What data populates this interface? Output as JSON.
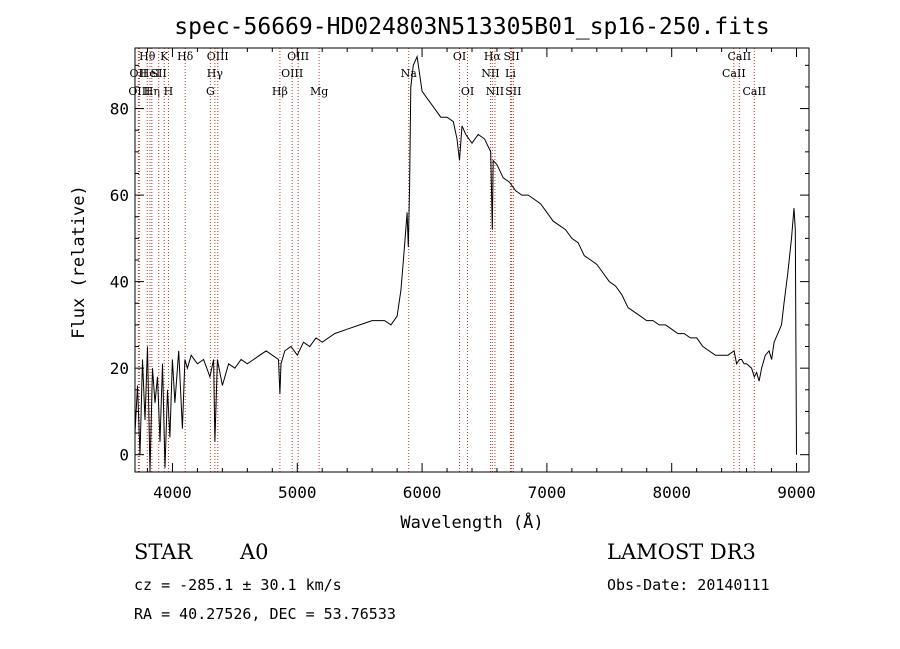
{
  "chart_data": {
    "type": "line",
    "title": "spec-56669-HD024803N513305B01_sp16-250.fits",
    "xlabel": "Wavelength (Å)",
    "ylabel": "Flux (relative)",
    "xlim": [
      3700,
      9100
    ],
    "ylim": [
      -4,
      94
    ],
    "xticks": [
      4000,
      5000,
      6000,
      7000,
      8000,
      9000
    ],
    "yticks": [
      0,
      20,
      40,
      60,
      80
    ],
    "series": [
      {
        "name": "flux",
        "x": [
          3700,
          3720,
          3740,
          3760,
          3780,
          3800,
          3820,
          3840,
          3860,
          3880,
          3900,
          3920,
          3940,
          3960,
          3980,
          4000,
          4020,
          4050,
          4080,
          4100,
          4120,
          4150,
          4200,
          4250,
          4300,
          4330,
          4340,
          4360,
          4400,
          4450,
          4500,
          4550,
          4600,
          4650,
          4700,
          4750,
          4800,
          4850,
          4861,
          4870,
          4900,
          4950,
          5000,
          5050,
          5100,
          5150,
          5200,
          5300,
          5400,
          5500,
          5600,
          5700,
          5750,
          5800,
          5830,
          5850,
          5870,
          5880,
          5890,
          5900,
          5910,
          5930,
          5960,
          6000,
          6050,
          6100,
          6150,
          6200,
          6250,
          6280,
          6300,
          6320,
          6350,
          6400,
          6450,
          6500,
          6550,
          6563,
          6570,
          6600,
          6650,
          6700,
          6750,
          6800,
          6850,
          6900,
          6950,
          7000,
          7050,
          7100,
          7150,
          7200,
          7250,
          7300,
          7350,
          7400,
          7450,
          7500,
          7550,
          7600,
          7650,
          7700,
          7750,
          7800,
          7850,
          7900,
          7950,
          8000,
          8050,
          8100,
          8150,
          8200,
          8250,
          8300,
          8350,
          8400,
          8450,
          8500,
          8520,
          8542,
          8560,
          8580,
          8600,
          8640,
          8662,
          8680,
          8700,
          8720,
          8750,
          8780,
          8800,
          8820,
          8850,
          8880,
          8900,
          8930,
          8960,
          8980,
          8990,
          9000
        ],
        "values": [
          5,
          16,
          0,
          22,
          8,
          25,
          -4,
          20,
          12,
          18,
          3,
          21,
          -3,
          15,
          4,
          22,
          12,
          24,
          6,
          22,
          20,
          23,
          21,
          22,
          18,
          22,
          3,
          22,
          16,
          21,
          20,
          22,
          21,
          22,
          23,
          24,
          23,
          22,
          14,
          21,
          24,
          25,
          23,
          26,
          25,
          27,
          26,
          28,
          29,
          30,
          31,
          31,
          30,
          32,
          38,
          45,
          52,
          56,
          48,
          62,
          85,
          90,
          92,
          84,
          82,
          80,
          78,
          78,
          77,
          73,
          68,
          76,
          74,
          72,
          74,
          73,
          70,
          52,
          68,
          67,
          64,
          63,
          61,
          60,
          60,
          59,
          58,
          56,
          54,
          53,
          52,
          50,
          49,
          46,
          45,
          44,
          42,
          40,
          39,
          37,
          34,
          33,
          32,
          31,
          31,
          30,
          30,
          29,
          28,
          28,
          27,
          27,
          25,
          24,
          23,
          23,
          23,
          24,
          21,
          22,
          22,
          21,
          21,
          20,
          18,
          19,
          17,
          20,
          23,
          24,
          22,
          26,
          28,
          30,
          35,
          42,
          50,
          57,
          52,
          0
        ]
      }
    ],
    "lines": [
      {
        "label": "Hθ",
        "wave": 3798,
        "row": 0
      },
      {
        "label": "OII",
        "wave": 3727,
        "row": 1
      },
      {
        "label": "OIII",
        "wave": 3735,
        "row": 2
      },
      {
        "label": "HeI",
        "wave": 3820,
        "row": 1
      },
      {
        "label": "Hη",
        "wave": 3835,
        "row": 2
      },
      {
        "label": "K",
        "wave": 3934,
        "row": 0
      },
      {
        "label": "SII",
        "wave": 3890,
        "row": 1
      },
      {
        "label": "H",
        "wave": 3968,
        "row": 2
      },
      {
        "label": "Hδ",
        "wave": 4102,
        "row": 0
      },
      {
        "label": "OIII",
        "wave": 4363,
        "row": 0
      },
      {
        "label": "Hγ",
        "wave": 4340,
        "row": 1
      },
      {
        "label": "G",
        "wave": 4304,
        "row": 2
      },
      {
        "label": "OIII",
        "wave": 5007,
        "row": 0
      },
      {
        "label": "OIII",
        "wave": 4959,
        "row": 1
      },
      {
        "label": "Hβ",
        "wave": 4861,
        "row": 2
      },
      {
        "label": "Mg",
        "wave": 5175,
        "row": 2
      },
      {
        "label": "Na",
        "wave": 5893,
        "row": 1
      },
      {
        "label": "OI",
        "wave": 6300,
        "row": 0
      },
      {
        "label": "OI",
        "wave": 6364,
        "row": 2
      },
      {
        "label": "Hα",
        "wave": 6563,
        "row": 0
      },
      {
        "label": "SII",
        "wave": 6717,
        "row": 0
      },
      {
        "label": "NII",
        "wave": 6548,
        "row": 1
      },
      {
        "label": "Li",
        "wave": 6708,
        "row": 1
      },
      {
        "label": "NII",
        "wave": 6584,
        "row": 2
      },
      {
        "label": "SII",
        "wave": 6731,
        "row": 2
      },
      {
        "label": "CaII",
        "wave": 8542,
        "row": 0
      },
      {
        "label": "CaII",
        "wave": 8498,
        "row": 1
      },
      {
        "label": "CaII",
        "wave": 8662,
        "row": 2
      }
    ]
  },
  "info": {
    "object_class": "STAR",
    "subclass": "A0",
    "survey": "LAMOST DR3",
    "redshift": "cz = -285.1 ± 30.1 km/s",
    "obs_date": "Obs-Date: 20140111",
    "coords": "RA =  40.27526, DEC =  53.76533"
  }
}
